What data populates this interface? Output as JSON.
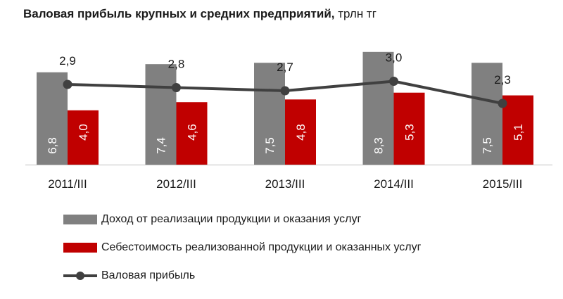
{
  "chart_data": {
    "type": "bar",
    "title": "Валовая  прибыль крупных  и средних  предприятий,",
    "unit": "трлн тг",
    "categories": [
      "2011/III",
      "2012/III",
      "2013/III",
      "2014/III",
      "2015/III"
    ],
    "series": [
      {
        "name": "Доход от реализации продукции и оказания услуг",
        "type": "bar",
        "color": "#808080",
        "values": [
          6.8,
          7.4,
          7.5,
          8.3,
          7.5
        ],
        "labels": [
          "6,8",
          "7,4",
          "7,5",
          "8,3",
          "7,5"
        ]
      },
      {
        "name": "Себестоимость реализованной продукции и оказанных услуг",
        "type": "bar",
        "color": "#c00000",
        "values": [
          4.0,
          4.6,
          4.8,
          5.3,
          5.1
        ],
        "labels": [
          "4,0",
          "4,6",
          "4,8",
          "5,3",
          "5,1"
        ]
      },
      {
        "name": "Валовая прибыль",
        "type": "line",
        "color": "#404040",
        "values": [
          2.9,
          2.8,
          2.7,
          3.0,
          2.3
        ],
        "labels": [
          "2,9",
          "2,8",
          "2,7",
          "3,0",
          "2,3"
        ]
      }
    ],
    "grid": false,
    "legend_position": "bottom"
  }
}
